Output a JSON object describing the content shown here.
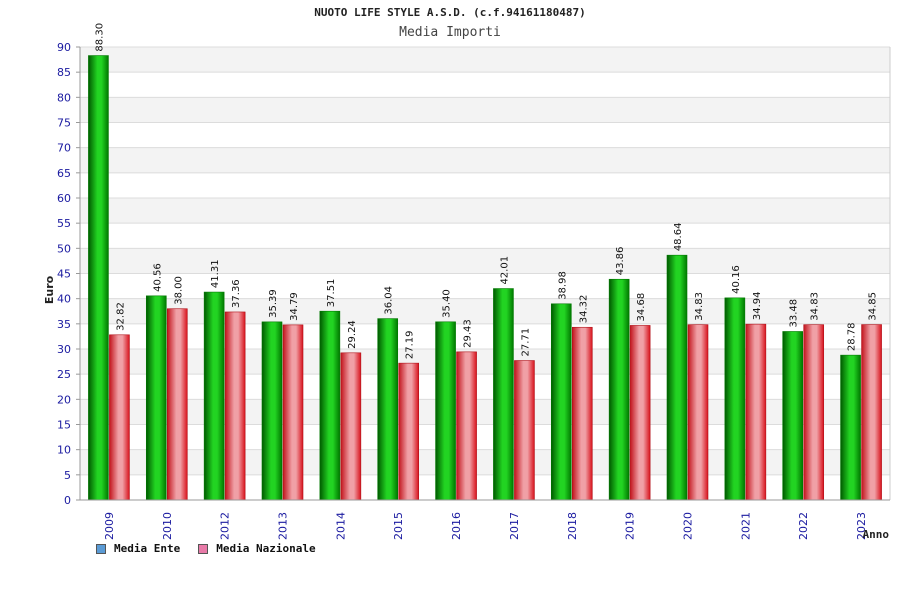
{
  "header": {
    "title": "NUOTO LIFE STYLE A.S.D. (c.f.94161180487)",
    "subtitle": "Media Importi"
  },
  "legend": {
    "items": [
      {
        "label": "Media Ente",
        "color": "#5b9bd5"
      },
      {
        "label": "Media Nazionale",
        "color": "#e87aa8"
      }
    ]
  },
  "chart_data": {
    "type": "bar",
    "title": "Media Importi",
    "xlabel": "Anno",
    "ylabel": "Euro",
    "ylim": [
      0,
      90
    ],
    "yticks": [
      0,
      5,
      10,
      15,
      20,
      25,
      30,
      35,
      40,
      45,
      50,
      55,
      60,
      65,
      70,
      75,
      80,
      85,
      90
    ],
    "grid": true,
    "legend_position": "bottom-left",
    "categories": [
      "2009",
      "2010",
      "2012",
      "2013",
      "2014",
      "2015",
      "2016",
      "2017",
      "2018",
      "2019",
      "2020",
      "2021",
      "2022",
      "2023"
    ],
    "series": [
      {
        "name": "Media Ente",
        "color": "#00b400",
        "values": [
          88.3,
          40.56,
          41.31,
          35.39,
          37.51,
          36.04,
          35.4,
          42.01,
          38.98,
          43.86,
          48.64,
          40.16,
          33.48,
          28.78
        ],
        "labels": [
          "88.30",
          "40.56",
          "41.31",
          "35.39",
          "37.51",
          "36.04",
          "35.40",
          "42.01",
          "38.98",
          "43.86",
          "48.64",
          "40.16",
          "33.48",
          "28.78"
        ]
      },
      {
        "name": "Media Nazionale",
        "color": "#e0202a",
        "values": [
          32.82,
          38.0,
          37.36,
          34.79,
          29.24,
          27.19,
          29.43,
          27.71,
          34.32,
          34.68,
          34.83,
          34.94,
          34.83,
          34.85
        ],
        "labels": [
          "32.82",
          "38.00",
          "37.36",
          "34.79",
          "29.24",
          "27.19",
          "29.43",
          "27.71",
          "34.32",
          "34.68",
          "34.83",
          "34.94",
          "34.83",
          "34.85"
        ]
      }
    ]
  }
}
